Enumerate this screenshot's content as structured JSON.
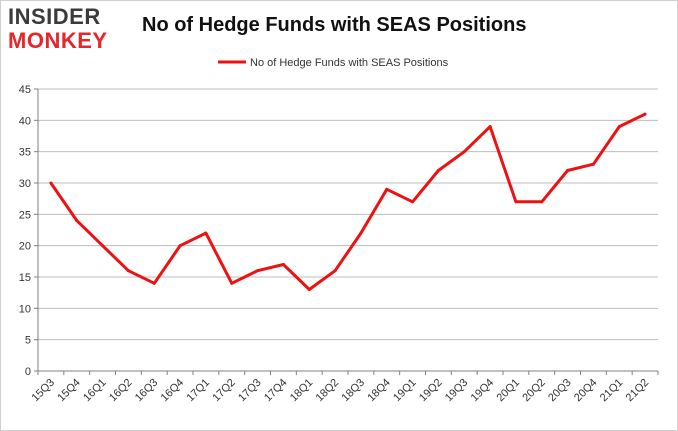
{
  "logo": {
    "line1": "INSIDER",
    "line2": "MONKEY"
  },
  "chart_data": {
    "type": "line",
    "title": "No of Hedge Funds with SEAS Positions",
    "xlabel": "",
    "ylabel": "",
    "categories": [
      "15Q3",
      "15Q4",
      "16Q1",
      "16Q2",
      "16Q3",
      "16Q4",
      "17Q1",
      "17Q2",
      "17Q3",
      "17Q4",
      "18Q1",
      "18Q2",
      "18Q3",
      "18Q4",
      "19Q1",
      "19Q2",
      "19Q3",
      "19Q4",
      "20Q1",
      "20Q2",
      "20Q3",
      "20Q4",
      "21Q1",
      "21Q2"
    ],
    "series": [
      {
        "name": "No of Hedge Funds with SEAS Positions",
        "color": "#ee1111",
        "values": [
          30,
          24,
          20,
          16,
          14,
          20,
          22,
          14,
          16,
          17,
          13,
          16,
          22,
          29,
          27,
          32,
          35,
          39,
          27,
          27,
          32,
          33,
          39,
          41
        ]
      }
    ],
    "ylim": [
      0,
      45
    ],
    "yticks": [
      0,
      5,
      10,
      15,
      20,
      25,
      30,
      35,
      40,
      45
    ],
    "grid": true,
    "legend": "top-center"
  }
}
